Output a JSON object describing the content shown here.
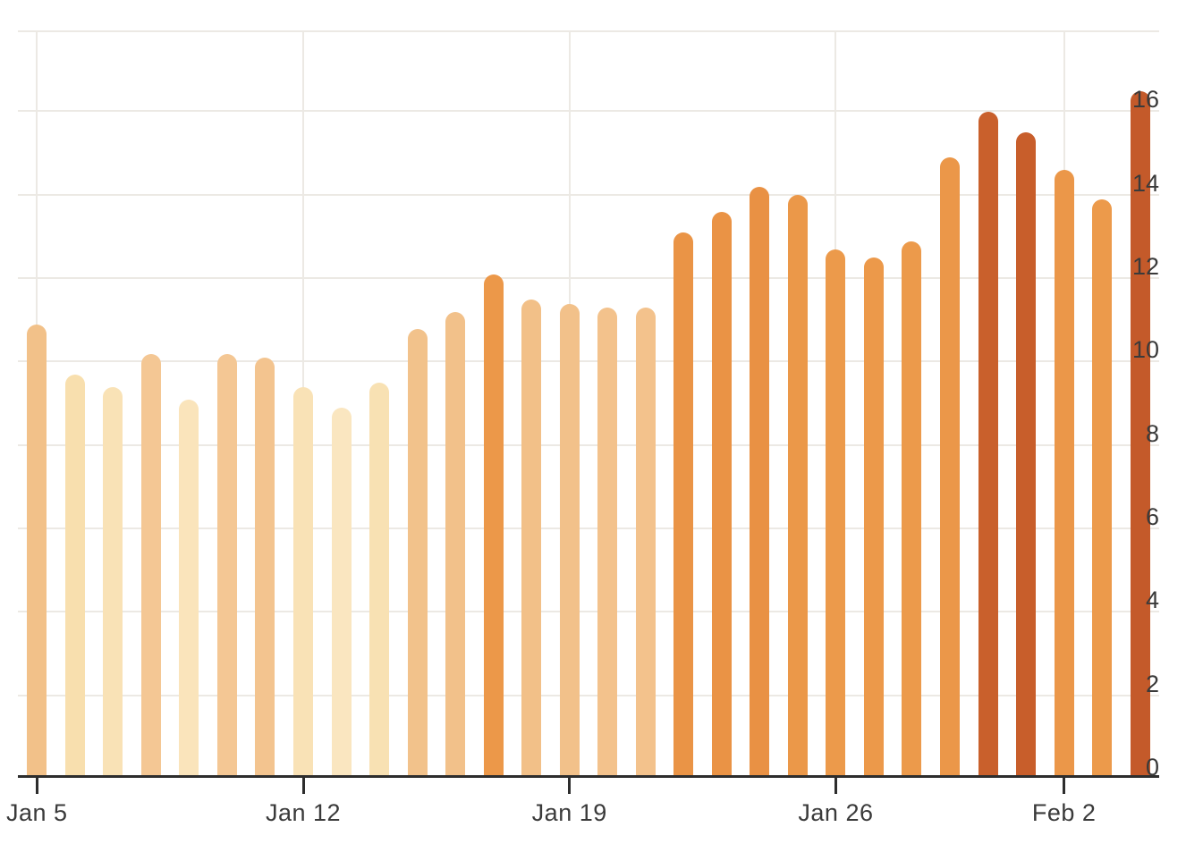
{
  "chart_data": {
    "type": "bar",
    "title": "",
    "n_bars": 30,
    "values": [
      10.8,
      9.6,
      9.3,
      10.1,
      9.0,
      10.1,
      10.0,
      9.3,
      8.8,
      9.4,
      10.7,
      11.1,
      12.0,
      11.4,
      11.3,
      11.2,
      11.2,
      13.0,
      13.5,
      14.1,
      13.9,
      12.6,
      12.4,
      12.8,
      14.8,
      15.9,
      15.4,
      14.5,
      13.8,
      16.4
    ],
    "bar_colors": [
      "#f2c189",
      "#f8dfae",
      "#f9e2b6",
      "#f4c794",
      "#fae4bb",
      "#f4c794",
      "#f3c48f",
      "#f9e2b6",
      "#fae6c0",
      "#f8e1b3",
      "#f2c28b",
      "#f2c18a",
      "#ec9849",
      "#f2c088",
      "#f2c18a",
      "#f3c28c",
      "#f3c28c",
      "#ea9446",
      "#ea9345",
      "#e99144",
      "#eb9849",
      "#ec9a4b",
      "#ec994a",
      "#ec9a4b",
      "#eb9749",
      "#c9602c",
      "#c85e2b",
      "#eb9749",
      "#ec9a4b",
      "#c45a2a"
    ],
    "color_encoding": "bar color darkens with value (cream for ~9, peach for ~10-11.5, orange for ~12-15, dark rust for >15)",
    "x_tick_labels": [
      "Jan 5",
      "Jan 12",
      "Jan 19",
      "Jan 26",
      "Feb 2"
    ],
    "x_tick_bar_index": [
      1,
      8,
      15,
      22,
      28
    ],
    "y_ticks": [
      "0",
      "2",
      "4",
      "6",
      "8",
      "10",
      "12",
      "14",
      "16"
    ],
    "y_tick_values": [
      0,
      2,
      4,
      6,
      8,
      10,
      12,
      14,
      16
    ],
    "ylim": [
      0,
      17.9
    ],
    "y_axis_side": "right",
    "grid": "on",
    "legend": "none"
  },
  "style": {
    "background": "#ffffff",
    "grid_color": "#ece9e4",
    "axis_color": "#2d2d2d",
    "label_color": "#3a3a3a"
  }
}
